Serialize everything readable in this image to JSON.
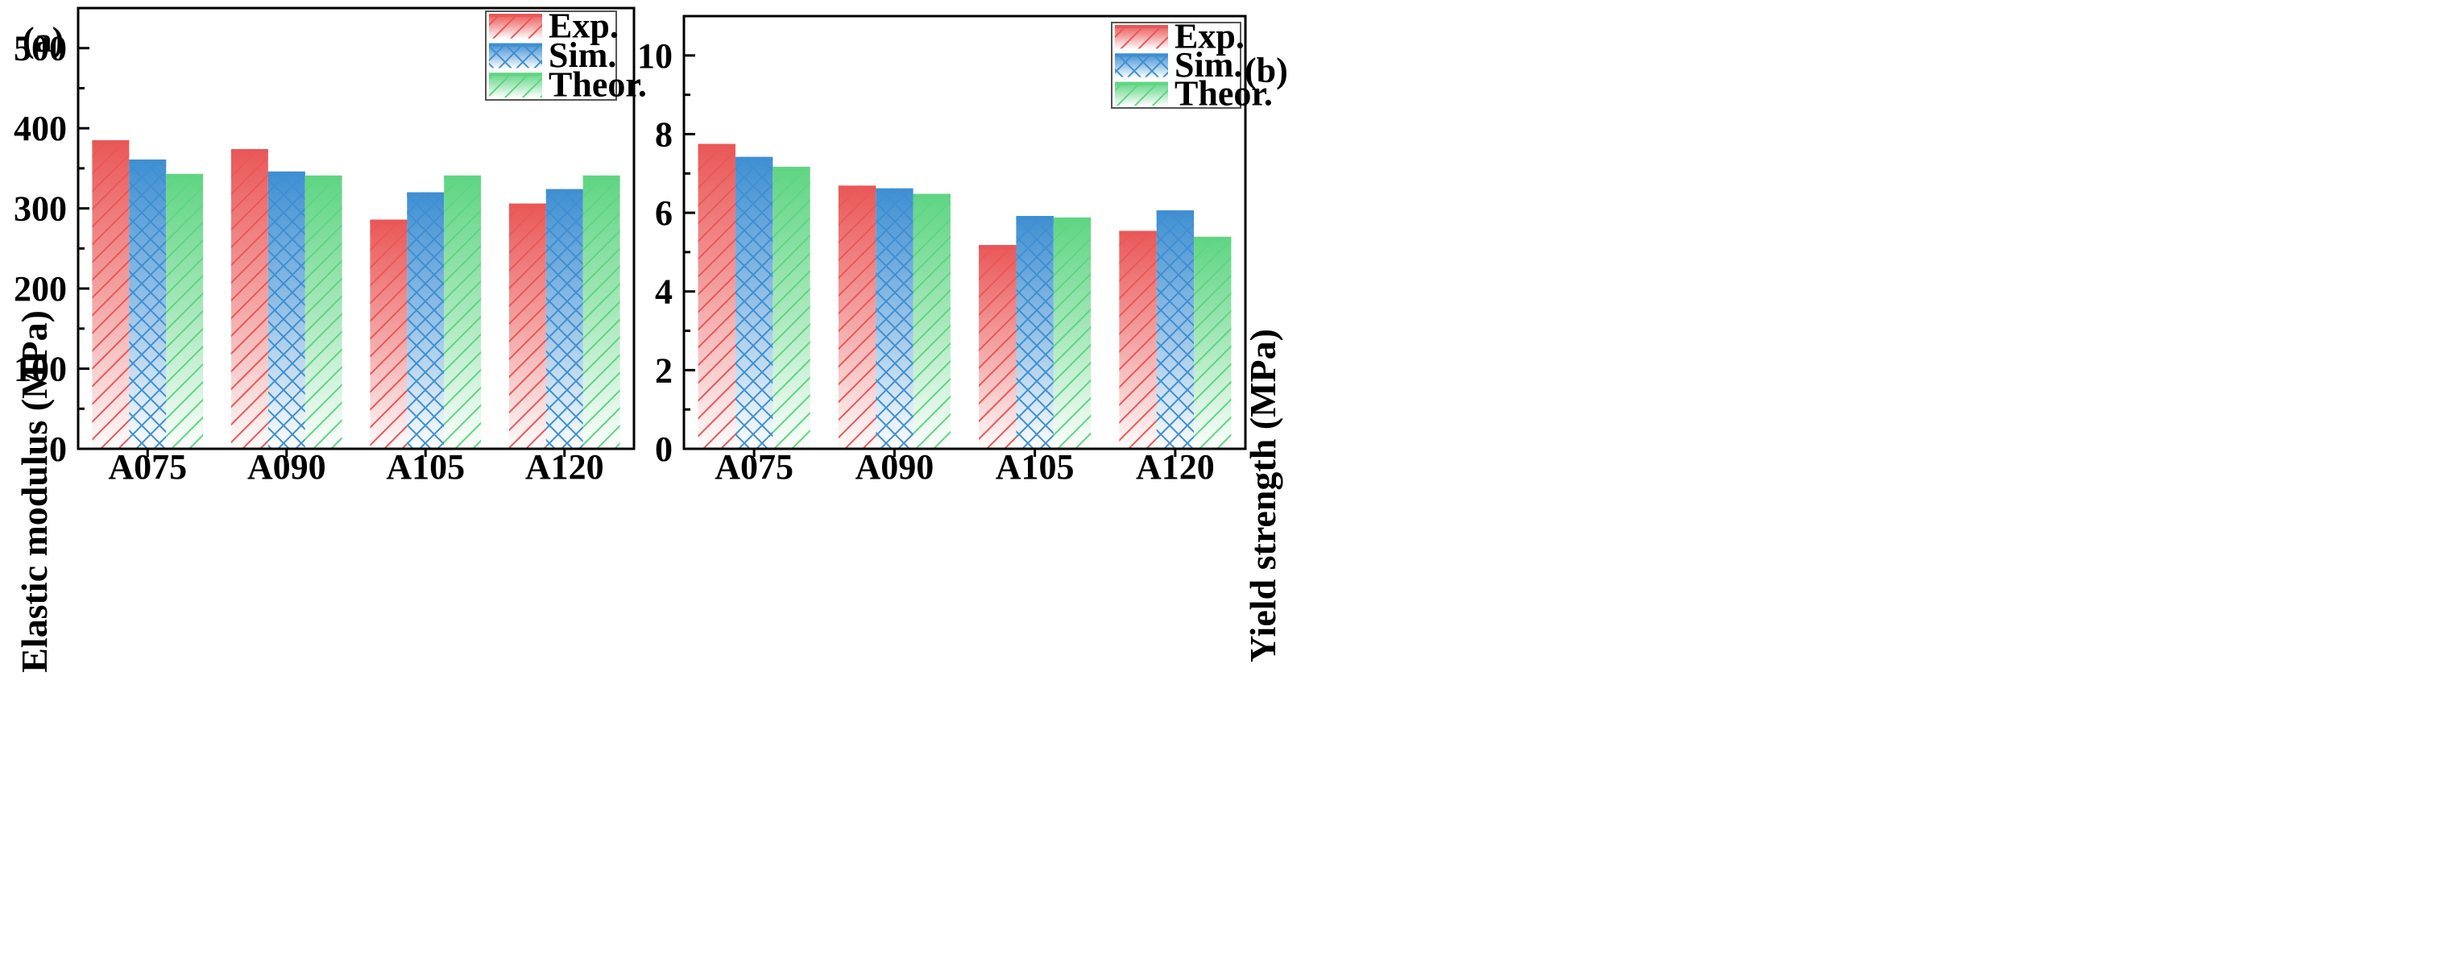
{
  "colors": {
    "Exp.": "#ea5757",
    "Sim.": "#3f8fd2",
    "Theor.": "#5fd583"
  },
  "patterns": {
    "Exp.": "diagonal-hatch",
    "Sim.": "cross-hatch",
    "Theor.": "diagonal-hatch"
  },
  "chart_data": [
    {
      "type": "bar",
      "panel_label": "(a)",
      "title": "",
      "xlabel": "",
      "ylabel": "Elastic modulus (MPa)",
      "categories": [
        "A075",
        "A090",
        "A105",
        "A120"
      ],
      "series": [
        {
          "name": "Exp.",
          "values": [
            385,
            374,
            286,
            306
          ]
        },
        {
          "name": "Sim.",
          "values": [
            361,
            346,
            320,
            324
          ]
        },
        {
          "name": "Theor.",
          "values": [
            343,
            341,
            341,
            341
          ]
        }
      ],
      "ylim": [
        0,
        550
      ],
      "yticks": [
        0,
        100,
        200,
        300,
        400,
        500
      ],
      "ytick_labels": [
        "0",
        "100",
        "200",
        "300",
        "400",
        "500"
      ],
      "minor_yticks": [
        50,
        150,
        250,
        350,
        450,
        550
      ],
      "grid": false,
      "legend_position": "top-right"
    },
    {
      "type": "bar",
      "panel_label": "(b)",
      "title": "",
      "xlabel": "",
      "ylabel": "Yield strength (MPa)",
      "categories": [
        "A075",
        "A090",
        "A105",
        "A120"
      ],
      "series": [
        {
          "name": "Exp.",
          "values": [
            7.75,
            6.69,
            5.18,
            5.54
          ]
        },
        {
          "name": "Sim.",
          "values": [
            7.42,
            6.62,
            5.92,
            6.06
          ]
        },
        {
          "name": "Theor.",
          "values": [
            7.17,
            6.48,
            5.88,
            5.39
          ]
        }
      ],
      "ylim": [
        0,
        11
      ],
      "yticks": [
        0,
        2,
        4,
        6,
        8,
        10
      ],
      "ytick_labels": [
        "0",
        "2",
        "4",
        "6",
        "8",
        "10"
      ],
      "minor_yticks": [
        1,
        3,
        5,
        7,
        9,
        11
      ],
      "grid": false,
      "legend_position": "top-right"
    }
  ]
}
